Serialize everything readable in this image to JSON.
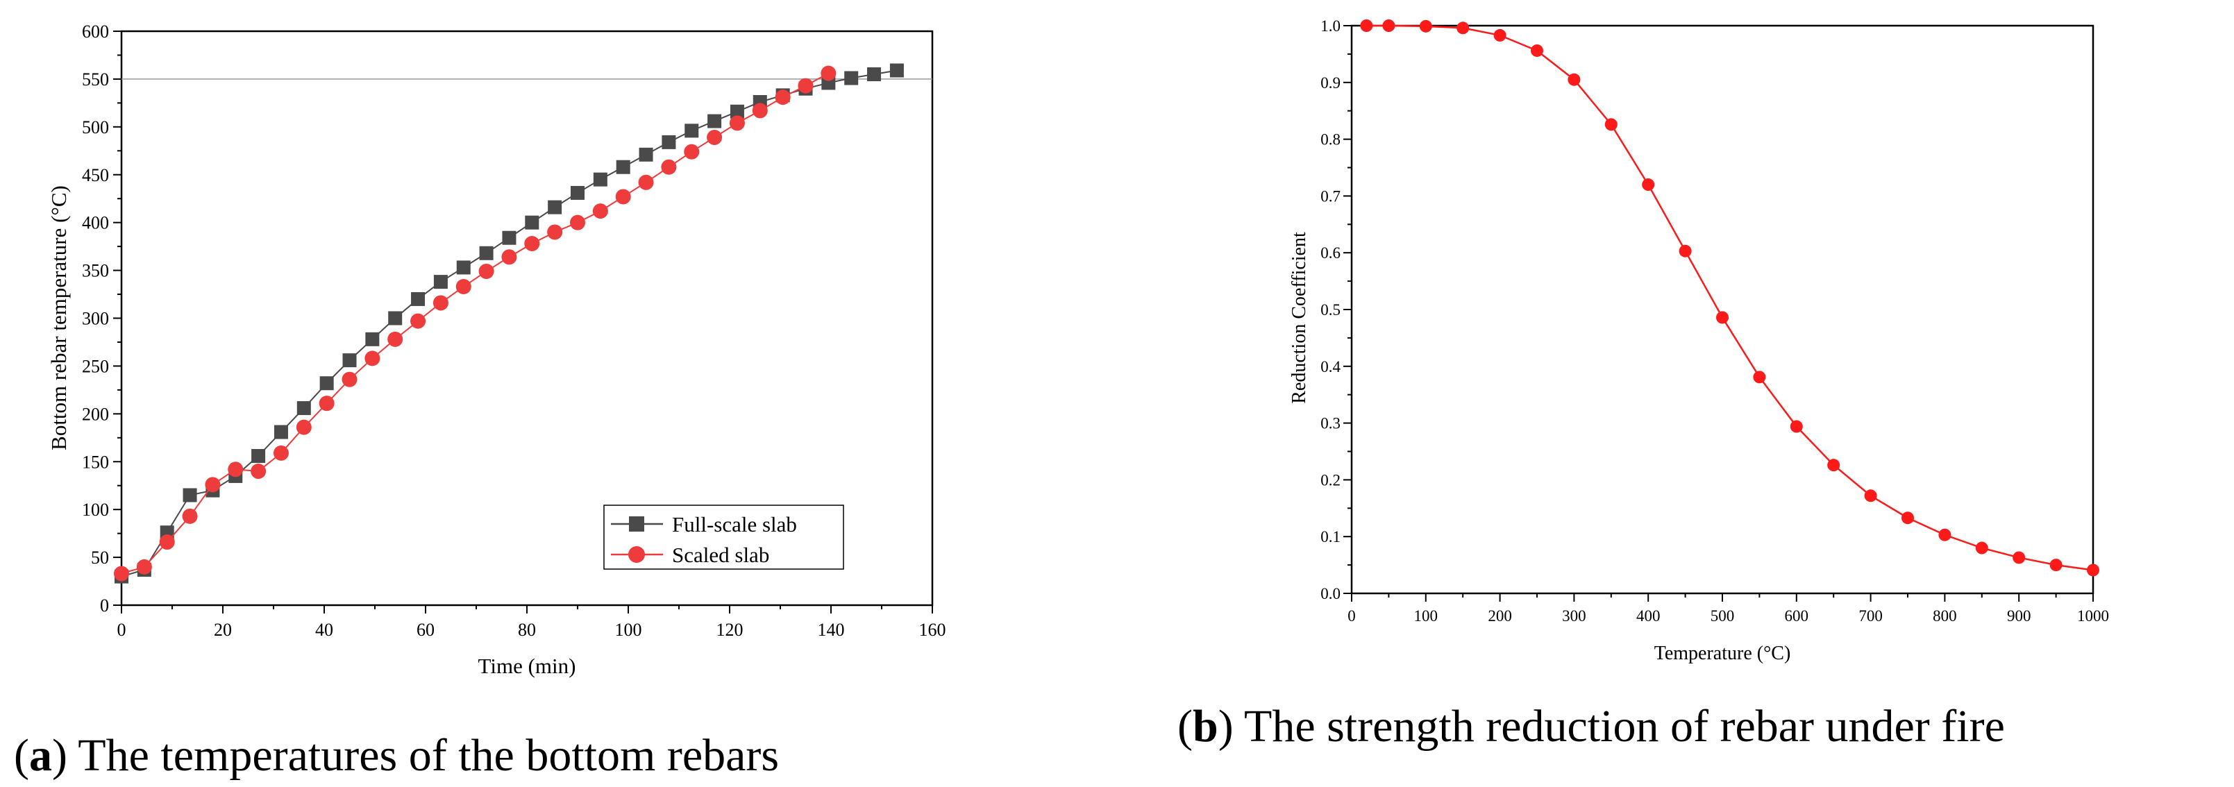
{
  "chart_data": [
    {
      "type": "line",
      "caption_letter": "a",
      "caption_text": "The temperatures of the bottom rebars",
      "xlabel": "Time (min)",
      "ylabel": "Bottom rebar temperature (°C)",
      "xlim": [
        0,
        160
      ],
      "ylim": [
        0,
        600
      ],
      "xticks": [
        0,
        20,
        40,
        60,
        80,
        100,
        120,
        140,
        160
      ],
      "yticks": [
        0,
        50,
        100,
        150,
        200,
        250,
        300,
        350,
        400,
        450,
        500,
        550,
        600
      ],
      "reference_line_y": 550,
      "legend_position": "bottom-right",
      "series": [
        {
          "name": "Full-scale slab",
          "color": "#4a4a4a",
          "marker": "square",
          "x": [
            0,
            4.5,
            9,
            13.5,
            18,
            22.5,
            27,
            31.5,
            36,
            40.5,
            45,
            49.5,
            54,
            58.5,
            63,
            67.5,
            72,
            76.5,
            81,
            85.5,
            90,
            94.5,
            99,
            103.5,
            108,
            112.5,
            117,
            121.5,
            126,
            130.5,
            135,
            139.5,
            144,
            148.5,
            153
          ],
          "y": [
            30,
            37,
            76,
            115,
            120,
            135,
            156,
            181,
            206,
            232,
            256,
            278,
            300,
            320,
            338,
            353,
            368,
            384,
            400,
            416,
            431,
            445,
            458,
            471,
            484,
            496,
            506,
            516,
            526,
            533,
            540,
            546,
            551,
            555,
            559
          ]
        },
        {
          "name": "Scaled slab",
          "color": "#ee3b3b",
          "marker": "circle",
          "x": [
            0,
            4.5,
            9,
            13.5,
            18,
            22.5,
            27,
            31.5,
            36,
            40.5,
            45,
            49.5,
            54,
            58.5,
            63,
            67.5,
            72,
            76.5,
            81,
            85.5,
            90,
            94.5,
            99,
            103.5,
            108,
            112.5,
            117,
            121.5,
            126,
            130.5,
            135,
            139.5
          ],
          "y": [
            33,
            40,
            66,
            93,
            126,
            142,
            140,
            159,
            186,
            211,
            236,
            258,
            278,
            297,
            316,
            333,
            349,
            364,
            378,
            390,
            400,
            412,
            427,
            442,
            458,
            474,
            489,
            504,
            517,
            531,
            543,
            556
          ]
        }
      ]
    },
    {
      "type": "line",
      "caption_letter": "b",
      "caption_text": "The strength reduction of rebar under fire",
      "xlabel": "Temperature (°C)",
      "ylabel": "Reduction Coefficient",
      "xlim": [
        0,
        1000
      ],
      "ylim": [
        0.0,
        1.0
      ],
      "xticks": [
        0,
        100,
        200,
        300,
        400,
        500,
        600,
        700,
        800,
        900,
        1000
      ],
      "yticks": [
        "0.0",
        "0.1",
        "0.2",
        "0.3",
        "0.4",
        "0.5",
        "0.6",
        "0.7",
        "0.8",
        "0.9",
        "1.0"
      ],
      "series": [
        {
          "name": "Reduction Coefficient",
          "color": "#ff1a1a",
          "marker": "circle",
          "x": [
            20,
            50,
            100,
            150,
            200,
            250,
            300,
            350,
            400,
            450,
            500,
            550,
            600,
            650,
            700,
            750,
            800,
            850,
            900,
            950,
            1000
          ],
          "y": [
            1.0,
            1.0,
            0.999,
            0.996,
            0.983,
            0.956,
            0.905,
            0.826,
            0.72,
            0.603,
            0.486,
            0.381,
            0.294,
            0.226,
            0.172,
            0.133,
            0.103,
            0.08,
            0.063,
            0.05,
            0.041
          ]
        }
      ]
    }
  ]
}
